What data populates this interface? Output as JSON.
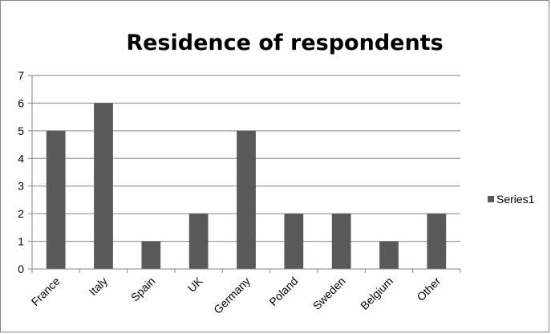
{
  "chart_data": {
    "type": "bar",
    "title": "Residence of respondents",
    "xlabel": "",
    "ylabel": "",
    "categories": [
      "France",
      "Italy",
      "Spain",
      "UK",
      "Germany",
      "Poland",
      "Sweden",
      "Belgium",
      "Other"
    ],
    "series": [
      {
        "name": "Series1",
        "values": [
          5,
          6,
          1,
          2,
          5,
          2,
          2,
          1,
          2
        ],
        "color": "#595959"
      }
    ],
    "ylim": [
      0,
      7
    ],
    "yticks": [
      "0",
      "1",
      "2",
      "3",
      "4",
      "5",
      "6",
      "7"
    ],
    "grid": true,
    "legend_position": "right",
    "colors": {
      "gridline": "#868686",
      "axis": "#868686",
      "bar": "#595959"
    }
  }
}
